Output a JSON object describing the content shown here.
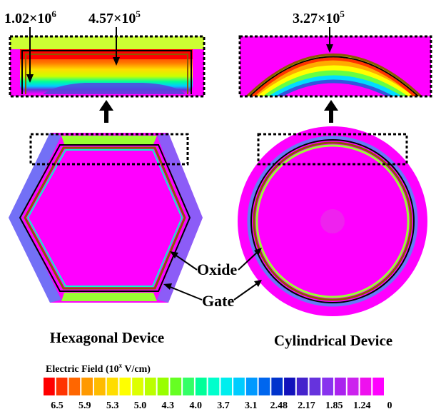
{
  "annotations": {
    "hex_peak_base": "1.02×10",
    "hex_peak_exp": "6",
    "hex_mid_base": "4.57×10",
    "hex_mid_exp": "5",
    "cyl_peak_base": "3.27×10",
    "cyl_peak_exp": "5"
  },
  "devices": {
    "hexagonal_label": "Hexagonal Device",
    "cylindrical_label": "Cylindrical Device"
  },
  "callouts": {
    "oxide": "Oxide",
    "gate": "Gate"
  },
  "colorbar": {
    "title_prefix": "Electric Field (10",
    "title_exp": "x",
    "title_suffix": " V/cm)",
    "colors": [
      "#ff0000",
      "#ff3300",
      "#ff6600",
      "#ff9900",
      "#ffbb00",
      "#ffdd00",
      "#ffff00",
      "#ddff00",
      "#bbff00",
      "#99ff00",
      "#66ff22",
      "#33ff66",
      "#00ff99",
      "#00ffcc",
      "#00eeee",
      "#00ccff",
      "#0099ff",
      "#0066ee",
      "#0033cc",
      "#1111bb",
      "#4422cc",
      "#6633dd",
      "#8833ee",
      "#aa22ee",
      "#cc22ee",
      "#ee11ee",
      "#ff00ff"
    ],
    "ticks": [
      "6.5",
      "5.9",
      "5.3",
      "5.0",
      "4.3",
      "4.0",
      "3.7",
      "3.1",
      "2.48",
      "2.17",
      "1.85",
      "1.24",
      "0"
    ]
  },
  "colors": {
    "background_field": "#ff00ff",
    "gate": "#000000",
    "oxide": "#8b5a00",
    "peak": "#ff0000"
  }
}
